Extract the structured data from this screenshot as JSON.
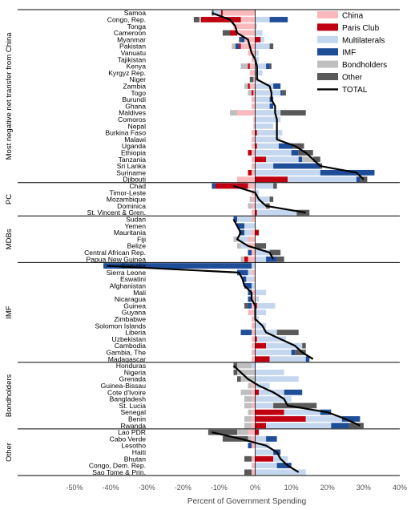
{
  "chart_data": {
    "type": "bar",
    "orientation": "horizontal",
    "stacked": true,
    "xlabel": "Percent of Government Spending",
    "xlim": [
      -50,
      40
    ],
    "xticks": [
      "-50%",
      "-40%",
      "-30%",
      "-20%",
      "-10%",
      "0%",
      "10%",
      "20%",
      "30%",
      "40%"
    ],
    "grid": false,
    "legend_position": "top-right",
    "legend": [
      {
        "key": "china",
        "label": "China",
        "color": "#F8B8BC"
      },
      {
        "key": "paris",
        "label": "Paris Club",
        "color": "#C00010"
      },
      {
        "key": "multi",
        "label": "Multilaterals",
        "color": "#C4D7EF"
      },
      {
        "key": "imf",
        "label": "IMF",
        "color": "#1F4E99"
      },
      {
        "key": "bond",
        "label": "Bondholders",
        "color": "#BFBFBF"
      },
      {
        "key": "other",
        "label": "Other",
        "color": "#595959"
      },
      {
        "key": "total",
        "label": "TOTAL",
        "color": "#000000"
      }
    ],
    "groups": [
      {
        "label": "Most negative net transfer from China",
        "rows": [
          {
            "country": "Samoa",
            "china": -9,
            "paris": -0.5,
            "multi": -2,
            "imf": 0,
            "bond": 0,
            "other": -0.5,
            "total": -12
          },
          {
            "country": "Congo, Rep.",
            "china": -4,
            "paris": -11,
            "multi": 4,
            "imf": 5,
            "bond": -0.5,
            "other": -1.5,
            "total": -7
          },
          {
            "country": "Tonga",
            "china": -6,
            "paris": 0,
            "multi": 0.5,
            "imf": 0,
            "bond": 0,
            "other": 0,
            "total": -5.5
          },
          {
            "country": "Cameroon",
            "china": -5,
            "paris": -2,
            "multi": 2,
            "imf": 0,
            "bond": 0,
            "other": -2,
            "total": -5
          },
          {
            "country": "Myanmar",
            "china": -3,
            "paris": 1.5,
            "multi": 1,
            "imf": -1,
            "bond": 0,
            "other": -0.5,
            "total": -2
          },
          {
            "country": "Pakistan",
            "china": -4,
            "paris": -0.5,
            "multi": 4,
            "imf": -1,
            "bond": -1,
            "other": 1,
            "total": -1.5
          },
          {
            "country": "Vanuatu",
            "china": -2,
            "paris": 0,
            "multi": 1,
            "imf": 0,
            "bond": 0,
            "other": 0,
            "total": -1
          },
          {
            "country": "Tajikistan",
            "china": -1,
            "paris": 0,
            "multi": 1,
            "imf": 0,
            "bond": 0,
            "other": 0,
            "total": 0
          },
          {
            "country": "Kenya",
            "china": -1.5,
            "paris": -0.5,
            "multi": 3,
            "imf": 1,
            "bond": -2,
            "other": 0.5,
            "total": 0.5
          },
          {
            "country": "Kyrgyz Rep.",
            "china": -1.5,
            "paris": 0,
            "multi": 2,
            "imf": 0,
            "bond": 0,
            "other": 0,
            "total": 0.5
          },
          {
            "country": "Niger",
            "china": -0.5,
            "paris": 0,
            "multi": 1,
            "imf": 0,
            "bond": 0,
            "other": -1,
            "total": 0.5
          },
          {
            "country": "Zambia",
            "china": -1.5,
            "paris": -0.5,
            "multi": 5,
            "imf": 2,
            "bond": -1,
            "other": 0,
            "total": 4
          },
          {
            "country": "Togo",
            "china": -0.5,
            "paris": -0.5,
            "multi": 7,
            "imf": 0.5,
            "bond": -1,
            "other": 1,
            "total": 4.5
          },
          {
            "country": "Burundi",
            "china": -1,
            "paris": 0,
            "multi": 4,
            "imf": 1,
            "bond": 0,
            "other": 0,
            "total": 4.5
          },
          {
            "country": "Ghana",
            "china": -1,
            "paris": 0,
            "multi": 4,
            "imf": 1,
            "bond": 0,
            "other": 0,
            "total": 5.5
          },
          {
            "country": "Maldives",
            "china": -5,
            "paris": 0,
            "multi": 7,
            "imf": 0,
            "bond": -2,
            "other": 7,
            "total": 5.5
          },
          {
            "country": "Comoros",
            "china": -0.5,
            "paris": 0,
            "multi": 7,
            "imf": 0,
            "bond": 0,
            "other": 0,
            "total": 6
          },
          {
            "country": "Nepal",
            "china": -0.5,
            "paris": 0,
            "multi": 5,
            "imf": 0,
            "bond": 0,
            "other": 0,
            "total": 6
          },
          {
            "country": "Burkina Faso",
            "china": -1,
            "paris": 0.5,
            "multi": 7,
            "imf": 0,
            "bond": 0,
            "other": 0,
            "total": 6
          },
          {
            "country": "Malawi",
            "china": -1,
            "paris": 0,
            "multi": 7,
            "imf": 0,
            "bond": 0,
            "other": 0,
            "total": 6
          },
          {
            "country": "Uganda",
            "china": -1,
            "paris": 0.5,
            "multi": 6,
            "imf": 4,
            "bond": 0,
            "other": 3,
            "total": 11
          },
          {
            "country": "Ethiopia",
            "china": -1,
            "paris": -1,
            "multi": 10,
            "imf": 2,
            "bond": 0,
            "other": 4,
            "total": 14
          },
          {
            "country": "Tanzania",
            "china": -1,
            "paris": 3,
            "multi": 9,
            "imf": 1,
            "bond": 3,
            "other": 2,
            "total": 16
          },
          {
            "country": "Sri Lanka",
            "china": -1,
            "paris": 0,
            "multi": 5,
            "imf": 13,
            "bond": 0,
            "other": 0.5,
            "total": 18
          },
          {
            "country": "Suriname",
            "china": -1,
            "paris": -1,
            "multi": 18,
            "imf": 15,
            "bond": 0,
            "other": 0,
            "total": 28
          },
          {
            "country": "Djibouti",
            "china": -5,
            "paris": 9,
            "multi": 19,
            "imf": 1,
            "bond": 0,
            "other": 2,
            "total": 30
          }
        ]
      },
      {
        "label": "PC",
        "rows": [
          {
            "country": "Chad",
            "china": -2,
            "paris": -9,
            "multi": 5,
            "imf": -1,
            "bond": 0,
            "other": 1,
            "total": -6
          },
          {
            "country": "Timor-Leste",
            "china": -1,
            "paris": 0,
            "multi": 1,
            "imf": 0,
            "bond": 0,
            "other": 0,
            "total": 0
          },
          {
            "country": "Mozambique",
            "china": -1,
            "paris": 0,
            "multi": 4,
            "imf": 0,
            "bond": -0.5,
            "other": 1,
            "total": 1
          },
          {
            "country": "Dominica",
            "china": -1,
            "paris": 0,
            "multi": 3,
            "imf": 0,
            "bond": -1,
            "other": 1,
            "total": 3
          },
          {
            "country": "St. Vincent & Gren.",
            "china": -1,
            "paris": 0.5,
            "multi": 11,
            "imf": 0,
            "bond": 0,
            "other": 3.5,
            "total": 14
          }
        ]
      },
      {
        "label": "MDBs",
        "rows": [
          {
            "country": "Sudan",
            "china": -1,
            "paris": 0,
            "multi": -4,
            "imf": -1,
            "bond": 0,
            "other": 0,
            "total": -6
          },
          {
            "country": "Yemen",
            "china": 0,
            "paris": 0,
            "multi": -3,
            "imf": -2,
            "bond": 0,
            "other": 0,
            "total": -5
          },
          {
            "country": "Mauritania",
            "china": -1,
            "paris": 1,
            "multi": -2,
            "imf": -1,
            "bond": 0,
            "other": -0.5,
            "total": -4
          },
          {
            "country": "Fiji",
            "china": -2,
            "paris": 0,
            "multi": -3,
            "imf": 0,
            "bond": -1,
            "other": 0,
            "total": -5
          },
          {
            "country": "Belize",
            "china": -2,
            "paris": 0,
            "multi": -2,
            "imf": 0,
            "bond": -1,
            "other": 3,
            "total": -2
          },
          {
            "country": "Central African Rep.",
            "china": -1,
            "paris": 0,
            "multi": 4,
            "imf": -1,
            "bond": 0,
            "other": 3,
            "total": 4
          },
          {
            "country": "Papua New Guinea",
            "china": -2,
            "paris": -1,
            "multi": 3,
            "imf": 3,
            "bond": -1,
            "other": 2,
            "total": 5
          }
        ]
      },
      {
        "label": "IMF",
        "rows": [
          {
            "country": "Somalia",
            "china": 0,
            "paris": 0,
            "multi": -1,
            "imf": -41,
            "bond": 0,
            "other": 0,
            "total": -41
          },
          {
            "country": "Sierra Leone",
            "china": -1,
            "paris": 0,
            "multi": -1,
            "imf": -3,
            "bond": 0,
            "other": 0,
            "total": -4.5
          },
          {
            "country": "Eswatini",
            "china": -0.5,
            "paris": 0,
            "multi": -2,
            "imf": -1,
            "bond": 0,
            "other": 0,
            "total": -3.5
          },
          {
            "country": "Afghanistan",
            "china": 0,
            "paris": 0,
            "multi": -1,
            "imf": -2,
            "bond": 0,
            "other": 0,
            "total": -3
          },
          {
            "country": "Mali",
            "china": -1,
            "paris": 0,
            "multi": 3,
            "imf": -1,
            "bond": 0,
            "other": 0,
            "total": -1
          },
          {
            "country": "Nicaragua",
            "china": -1,
            "paris": 0,
            "multi": 1,
            "imf": -1,
            "bond": 0,
            "other": 0,
            "total": -1
          },
          {
            "country": "Guinea",
            "china": -1,
            "paris": 0.5,
            "multi": 5,
            "imf": -1,
            "bond": 0,
            "other": -1,
            "total": 0
          },
          {
            "country": "Guyana",
            "china": -2,
            "paris": 0,
            "multi": 3,
            "imf": 0,
            "bond": 0,
            "other": 0,
            "total": 0
          },
          {
            "country": "Zimbabwe",
            "china": -1,
            "paris": 0,
            "multi": 1,
            "imf": 0,
            "bond": 0,
            "other": 0,
            "total": 0
          },
          {
            "country": "Solomon Islands",
            "china": -1,
            "paris": 0,
            "multi": 3,
            "imf": 0,
            "bond": 0,
            "other": 0,
            "total": 2
          },
          {
            "country": "Liberia",
            "china": -1,
            "paris": 0,
            "multi": 6,
            "imf": -3,
            "bond": 0,
            "other": 6,
            "total": 3
          },
          {
            "country": "Uzbekistan",
            "china": -1,
            "paris": 0.5,
            "multi": 8,
            "imf": 0,
            "bond": 0,
            "other": 0,
            "total": 7
          },
          {
            "country": "Cambodia",
            "china": -1,
            "paris": 3,
            "multi": 10,
            "imf": 0,
            "bond": 0,
            "other": 1,
            "total": 11
          },
          {
            "country": "Gambia, The",
            "china": -1,
            "paris": 0,
            "multi": 10,
            "imf": 1,
            "bond": 0,
            "other": 3,
            "total": 13
          },
          {
            "country": "Madagascar",
            "china": -1,
            "paris": 4,
            "multi": 10,
            "imf": 1,
            "bond": 0,
            "other": 0,
            "total": 16
          }
        ]
      },
      {
        "label": "Bondholders",
        "rows": [
          {
            "country": "Honduras",
            "china": 0,
            "paris": 0,
            "multi": -1,
            "imf": 0,
            "bond": -4,
            "other": -1,
            "total": -6
          },
          {
            "country": "Nigeria",
            "china": 0,
            "paris": 0,
            "multi": 8,
            "imf": 0,
            "bond": -5,
            "other": -1,
            "total": -4
          },
          {
            "country": "Grenada",
            "china": 0,
            "paris": 0,
            "multi": 12,
            "imf": 0,
            "bond": -4,
            "other": -1,
            "total": -2
          },
          {
            "country": "Guinea-Bissau",
            "china": -1,
            "paris": 0,
            "multi": 4,
            "imf": 0,
            "bond": -1,
            "other": 0,
            "total": 1
          },
          {
            "country": "Cote d'Ivoire",
            "china": -1,
            "paris": 1,
            "multi": 7,
            "imf": 5,
            "bond": -3,
            "other": 0,
            "total": 5
          },
          {
            "country": "Bangladesh",
            "china": -1,
            "paris": 0,
            "multi": 10,
            "imf": 0,
            "bond": -2,
            "other": 0,
            "total": 8
          },
          {
            "country": "St. Lucia",
            "china": -1,
            "paris": 0,
            "multi": 5,
            "imf": 0,
            "bond": -2,
            "other": 12,
            "total": 9
          },
          {
            "country": "Senegal",
            "china": -1,
            "paris": 8,
            "multi": 10,
            "imf": 3,
            "bond": -1,
            "other": 0,
            "total": 20
          },
          {
            "country": "Benin",
            "china": -1,
            "paris": 14,
            "multi": 10,
            "imf": 5,
            "bond": -2,
            "other": 0,
            "total": 25
          },
          {
            "country": "Rwanda",
            "china": -1,
            "paris": 3,
            "multi": 18,
            "imf": 5,
            "bond": -2,
            "other": 4,
            "total": 29
          }
        ]
      },
      {
        "label": "Other",
        "rows": [
          {
            "country": "Lao PDR",
            "china": -2,
            "paris": 1,
            "multi": 0,
            "imf": 0,
            "bond": -3,
            "other": -8,
            "total": -12
          },
          {
            "country": "Cabo Verde",
            "china": -1,
            "paris": 0,
            "multi": 3,
            "imf": 3,
            "bond": -1,
            "other": -7,
            "total": -4
          },
          {
            "country": "Lesotho",
            "china": -1,
            "paris": 0,
            "multi": 4,
            "imf": -1,
            "bond": 0,
            "other": 0,
            "total": 3
          },
          {
            "country": "Haiti",
            "china": 0,
            "paris": 0,
            "multi": 5,
            "imf": 2,
            "bond": 0,
            "other": 0,
            "total": 6
          },
          {
            "country": "Bhutan",
            "china": -1,
            "paris": 5,
            "multi": 4,
            "imf": 0,
            "bond": 0,
            "other": -2,
            "total": 7
          },
          {
            "country": "Congo, Dem. Rep.",
            "china": -1,
            "paris": 0,
            "multi": 6,
            "imf": 4,
            "bond": 0,
            "other": 0,
            "total": 9
          },
          {
            "country": "Sao Tome & Prin.",
            "china": -1,
            "paris": 0,
            "multi": 14,
            "imf": 0,
            "bond": 0,
            "other": -2,
            "total": 12
          }
        ]
      }
    ]
  }
}
